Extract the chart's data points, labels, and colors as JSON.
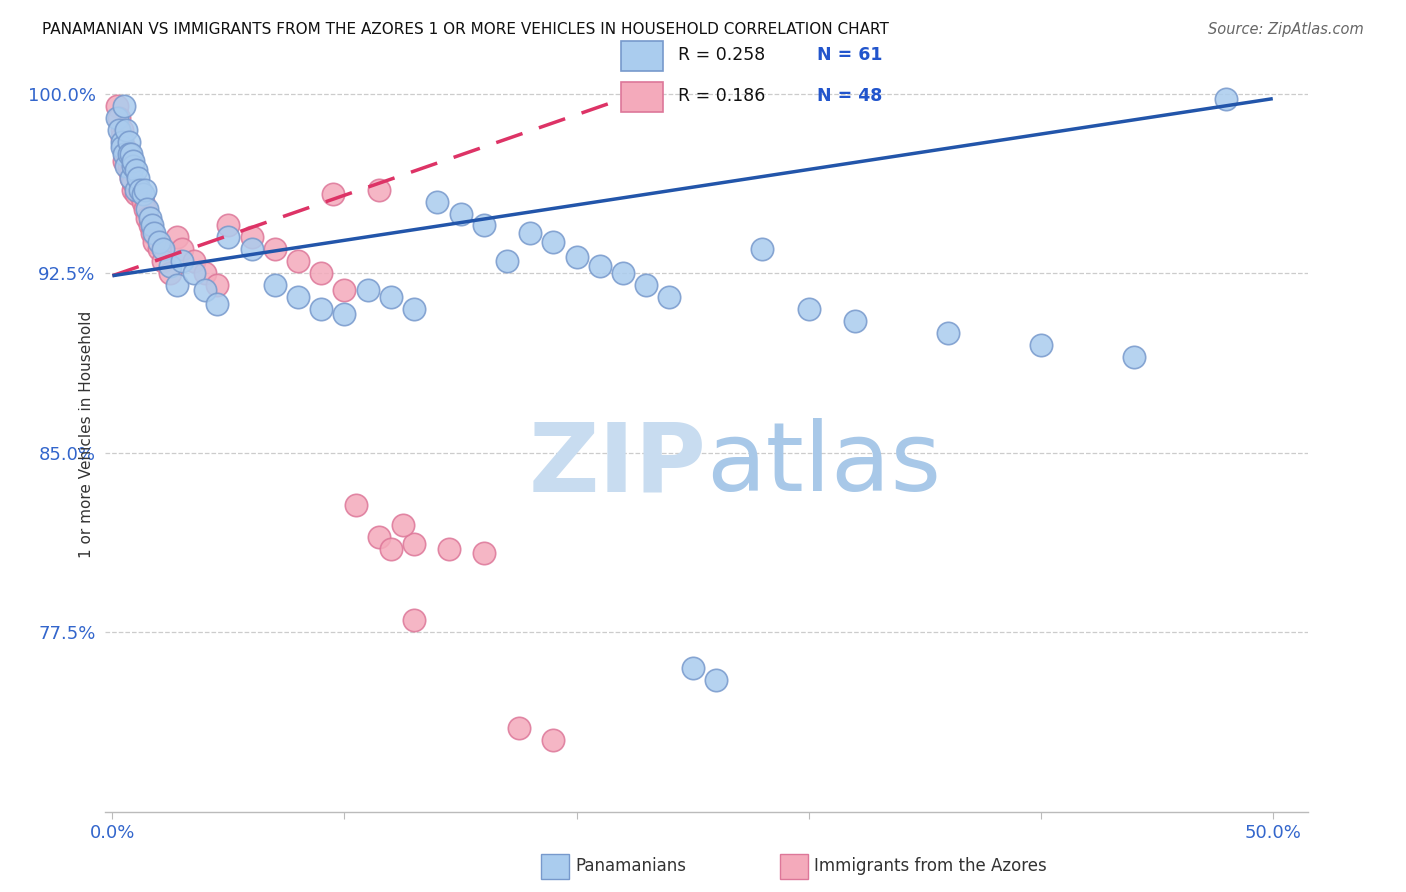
{
  "title": "PANAMANIAN VS IMMIGRANTS FROM THE AZORES 1 OR MORE VEHICLES IN HOUSEHOLD CORRELATION CHART",
  "source": "Source: ZipAtlas.com",
  "xlabel_blue": "Panamanians",
  "xlabel_pink": "Immigrants from the Azores",
  "ylabel": "1 or more Vehicles in Household",
  "xlim": [
    -0.003,
    0.515
  ],
  "ylim": [
    0.7,
    1.015
  ],
  "yticks": [
    0.775,
    0.85,
    0.925,
    1.0
  ],
  "ytick_labels": [
    "77.5%",
    "85.0%",
    "92.5%",
    "100.0%"
  ],
  "xtick_positions": [
    0.0,
    0.1,
    0.2,
    0.3,
    0.4,
    0.5
  ],
  "xtick_labels": [
    "0.0%",
    "",
    "",
    "",
    "",
    "50.0%"
  ],
  "R_blue": 0.258,
  "N_blue": 61,
  "R_pink": 0.186,
  "N_pink": 48,
  "blue_face": "#AACCEE",
  "blue_edge": "#7799CC",
  "pink_face": "#F4AABB",
  "pink_edge": "#DD7799",
  "blue_line": "#2255AA",
  "pink_line": "#DD3366",
  "grid_color": "#CCCCCC",
  "watermark_color": "#D5E8F8",
  "blue_scatter_x": [
    0.002,
    0.003,
    0.004,
    0.004,
    0.005,
    0.005,
    0.006,
    0.006,
    0.007,
    0.007,
    0.008,
    0.008,
    0.009,
    0.009,
    0.01,
    0.01,
    0.011,
    0.012,
    0.013,
    0.014,
    0.015,
    0.016,
    0.017,
    0.018,
    0.02,
    0.022,
    0.025,
    0.028,
    0.03,
    0.035,
    0.04,
    0.045,
    0.05,
    0.06,
    0.07,
    0.08,
    0.09,
    0.1,
    0.11,
    0.12,
    0.13,
    0.14,
    0.15,
    0.16,
    0.17,
    0.18,
    0.19,
    0.2,
    0.21,
    0.22,
    0.23,
    0.24,
    0.25,
    0.26,
    0.28,
    0.3,
    0.32,
    0.36,
    0.4,
    0.44,
    0.48
  ],
  "blue_scatter_y": [
    0.99,
    0.985,
    0.98,
    0.978,
    0.995,
    0.975,
    0.985,
    0.97,
    0.98,
    0.975,
    0.975,
    0.965,
    0.97,
    0.972,
    0.968,
    0.96,
    0.965,
    0.96,
    0.958,
    0.96,
    0.952,
    0.948,
    0.945,
    0.942,
    0.938,
    0.935,
    0.928,
    0.92,
    0.93,
    0.925,
    0.918,
    0.912,
    0.94,
    0.935,
    0.92,
    0.915,
    0.91,
    0.908,
    0.918,
    0.915,
    0.91,
    0.955,
    0.95,
    0.945,
    0.93,
    0.942,
    0.938,
    0.932,
    0.928,
    0.925,
    0.92,
    0.915,
    0.76,
    0.755,
    0.935,
    0.91,
    0.905,
    0.9,
    0.895,
    0.89,
    0.998
  ],
  "pink_scatter_x": [
    0.002,
    0.003,
    0.004,
    0.004,
    0.005,
    0.005,
    0.006,
    0.007,
    0.007,
    0.008,
    0.008,
    0.009,
    0.009,
    0.01,
    0.011,
    0.012,
    0.013,
    0.014,
    0.015,
    0.016,
    0.017,
    0.018,
    0.02,
    0.022,
    0.025,
    0.028,
    0.03,
    0.035,
    0.04,
    0.045,
    0.05,
    0.06,
    0.07,
    0.08,
    0.09,
    0.1,
    0.115,
    0.13,
    0.145,
    0.16,
    0.175,
    0.19,
    0.095,
    0.105,
    0.115,
    0.12,
    0.125,
    0.13
  ],
  "pink_scatter_y": [
    0.995,
    0.99,
    0.985,
    0.982,
    0.978,
    0.972,
    0.975,
    0.968,
    0.97,
    0.965,
    0.968,
    0.96,
    0.963,
    0.958,
    0.96,
    0.958,
    0.955,
    0.952,
    0.948,
    0.945,
    0.942,
    0.938,
    0.935,
    0.93,
    0.925,
    0.94,
    0.935,
    0.93,
    0.925,
    0.92,
    0.945,
    0.94,
    0.935,
    0.93,
    0.925,
    0.918,
    0.815,
    0.812,
    0.81,
    0.808,
    0.735,
    0.73,
    0.958,
    0.828,
    0.96,
    0.81,
    0.82,
    0.78
  ],
  "blue_trendline_x": [
    0.0,
    0.5
  ],
  "blue_trendline_y": [
    0.924,
    0.998
  ],
  "pink_trendline_x": [
    0.0,
    0.22
  ],
  "pink_trendline_y": [
    0.924,
    0.998
  ]
}
